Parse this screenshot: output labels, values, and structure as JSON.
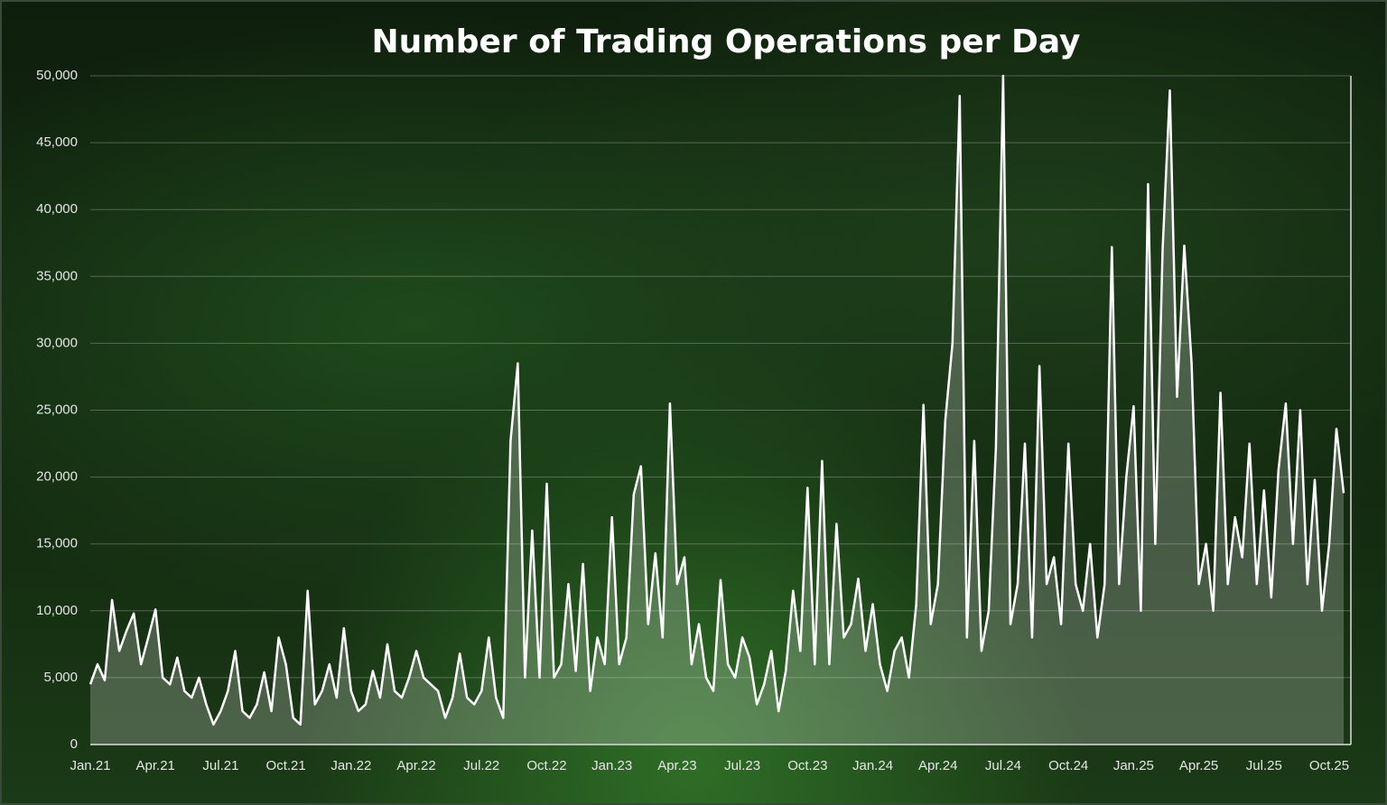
{
  "chart_data": {
    "type": "line",
    "title": "Number of Trading Operations per Day",
    "categories": [
      "Jan.21",
      null,
      null,
      null,
      null,
      null,
      null,
      null,
      null,
      "Apr.21",
      null,
      null,
      null,
      null,
      null,
      null,
      null,
      null,
      "Jul.21",
      null,
      null,
      null,
      null,
      null,
      null,
      null,
      null,
      "Oct.21",
      null,
      null,
      null,
      null,
      null,
      null,
      null,
      null,
      "Jan.22",
      null,
      null,
      null,
      null,
      null,
      null,
      null,
      null,
      "Apr.22",
      null,
      null,
      null,
      null,
      null,
      null,
      null,
      null,
      "Jul.22",
      null,
      null,
      null,
      null,
      null,
      null,
      null,
      null,
      "Oct.22",
      null,
      null,
      null,
      null,
      null,
      null,
      null,
      null,
      "Jan.23",
      null,
      null,
      null,
      null,
      null,
      null,
      null,
      null,
      "Apr.23",
      null,
      null,
      null,
      null,
      null,
      null,
      null,
      null,
      "Jul.23",
      null,
      null,
      null,
      null,
      null,
      null,
      null,
      null,
      "Oct.23",
      null,
      null,
      null,
      null,
      null,
      null,
      null,
      null,
      "Jan.24",
      null,
      null,
      null,
      null,
      null,
      null,
      null,
      null,
      "Apr.24",
      null,
      null,
      null,
      null,
      null,
      null,
      null,
      null,
      "Jul.24",
      null,
      null,
      null,
      null,
      null,
      null,
      null,
      null,
      "Oct.24",
      null,
      null,
      null,
      null,
      null,
      null,
      null,
      null,
      "Jan.25",
      null,
      null,
      null,
      null,
      null,
      null,
      null,
      null,
      "Apr.25",
      null,
      null,
      null,
      null,
      null,
      null,
      null,
      null,
      "Jul.25",
      null,
      null,
      null,
      null,
      null,
      null,
      null,
      null,
      "Oct.25",
      null,
      null
    ],
    "series": [
      {
        "color": "#ffffff",
        "values": [
          4500,
          6000,
          4800,
          10800,
          7000,
          8500,
          9800,
          6000,
          8000,
          10100,
          5000,
          4500,
          6500,
          4000,
          3500,
          5000,
          3000,
          1500,
          2500,
          4000,
          7000,
          2500,
          2000,
          3000,
          5400,
          2500,
          8000,
          6000,
          2000,
          1500,
          11500,
          3000,
          4000,
          6000,
          3500,
          8700,
          4000,
          2500,
          3000,
          5500,
          3500,
          7500,
          4000,
          3500,
          5000,
          7000,
          5000,
          4500,
          4000,
          2000,
          3500,
          6800,
          3500,
          3000,
          4000,
          8000,
          3500,
          2000,
          22700,
          28500,
          5000,
          16000,
          5000,
          19500,
          5000,
          6000,
          12000,
          5500,
          13500,
          4000,
          8000,
          6000,
          17000,
          6000,
          8000,
          18700,
          20800,
          9000,
          14300,
          8000,
          25500,
          12000,
          14000,
          6000,
          9000,
          5000,
          4000,
          12300,
          6000,
          5000,
          8000,
          6500,
          3000,
          4500,
          7000,
          2500,
          5500,
          11500,
          7000,
          19200,
          6000,
          21200,
          6000,
          16500,
          8000,
          9000,
          12400,
          7000,
          10500,
          6000,
          4000,
          7000,
          8000,
          5000,
          10500,
          25400,
          9000,
          12000,
          24200,
          30000,
          48500,
          8000,
          22700,
          7000,
          10000,
          22200,
          50000,
          9000,
          12000,
          22500,
          8000,
          28300,
          12000,
          14000,
          9000,
          22500,
          12000,
          10000,
          15000,
          8000,
          12000,
          37200,
          12000,
          20000,
          25300,
          10000,
          41900,
          15000,
          37000,
          48900,
          26000,
          37300,
          28500,
          12000,
          15000,
          10000,
          26300,
          12000,
          17000,
          14000,
          22500,
          12000,
          19000,
          11000,
          20500,
          25500,
          15000,
          25000,
          12000,
          19800,
          10000,
          15000,
          23600,
          18800
        ]
      }
    ],
    "ylim": [
      0,
      50000
    ],
    "yticks": [
      0,
      {
        "value": 5000,
        "label": "5,000"
      },
      {
        "value": 10000,
        "label": "10,000"
      },
      {
        "value": 15000,
        "label": "15,000"
      },
      {
        "value": 20000,
        "label": "20,000"
      },
      {
        "value": 25000,
        "label": "25,000"
      },
      {
        "value": 30000,
        "label": "30,000"
      },
      {
        "value": 35000,
        "label": "35,000"
      },
      {
        "value": 40000,
        "label": "40,000"
      },
      {
        "value": 45000,
        "label": "45,000"
      },
      {
        "value": 50000,
        "label": "50,000"
      }
    ],
    "grid": true
  }
}
